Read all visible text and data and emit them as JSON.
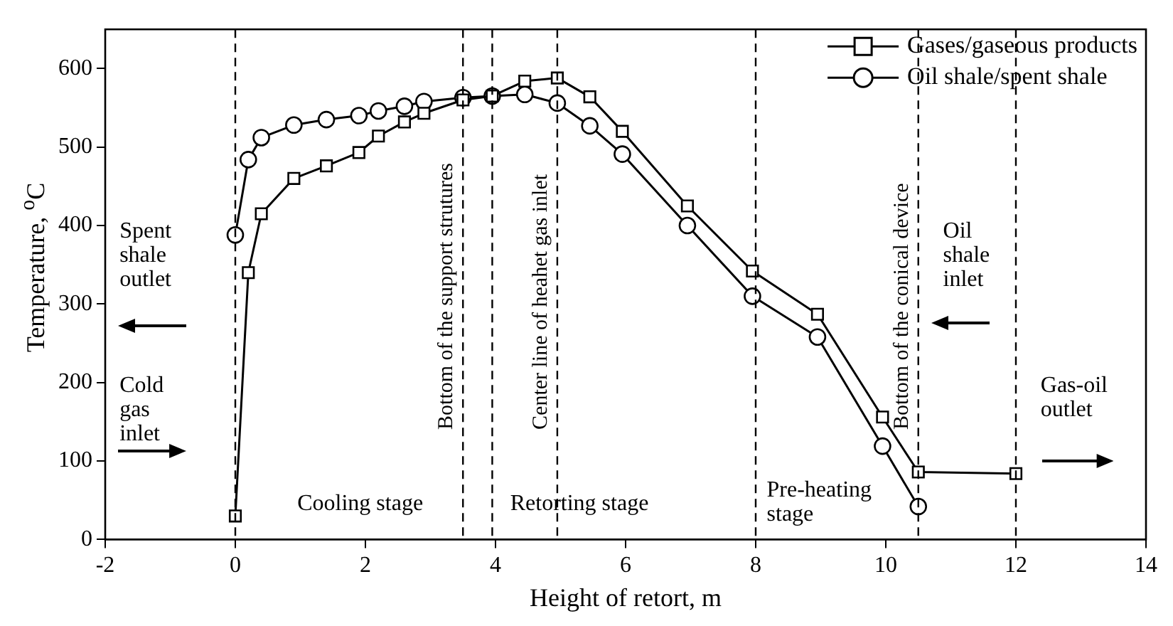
{
  "chart_data": {
    "type": "line",
    "xlabel": "Height of retort, m",
    "ylabel": "Temperature, $^{o}$C",
    "xlim": [
      -2,
      14
    ],
    "xticks": [
      -2,
      0,
      2,
      4,
      6,
      8,
      10,
      12,
      14
    ],
    "ylim": [
      0,
      650
    ],
    "yticks": [
      0,
      100,
      200,
      300,
      400,
      500,
      600
    ],
    "grid": false,
    "legend": "top right",
    "line_style": "solid",
    "series": [
      {
        "name": "Gases/gaseous products",
        "color": "#000000",
        "marker": "square",
        "x": [
          0,
          0.2,
          0.4,
          0.9,
          1.4,
          1.9,
          2.2,
          2.6,
          2.9,
          3.5,
          3.95,
          4.45,
          4.95,
          5.45,
          5.95,
          6.95,
          7.95,
          8.95,
          9.95,
          10.5,
          12
        ],
        "values": [
          30,
          340,
          415,
          460,
          476,
          493,
          514,
          532,
          543,
          560,
          565,
          584,
          588,
          564,
          520,
          425,
          342,
          287,
          156,
          86,
          84
        ]
      },
      {
        "name": "Oil shale/spent shale",
        "color": "#000000",
        "marker": "circle",
        "x": [
          0,
          0.2,
          0.4,
          0.9,
          1.4,
          1.9,
          2.2,
          2.6,
          2.9,
          3.5,
          3.95,
          4.45,
          4.95,
          5.45,
          5.95,
          6.95,
          7.95,
          8.95,
          9.95,
          10.5
        ],
        "values": [
          388,
          484,
          512,
          528,
          535,
          540,
          546,
          552,
          558,
          563,
          565,
          567,
          556,
          527,
          491,
          400,
          310,
          258,
          119,
          42
        ]
      }
    ],
    "ref_lines": [
      {
        "axis": "x",
        "value": 0,
        "line_style": "dashed"
      },
      {
        "axis": "x",
        "value": 3.5,
        "label": "Bottom of the support strutures",
        "line_style": "dashed"
      },
      {
        "axis": "x",
        "value": 3.95,
        "line_style": "dashed"
      },
      {
        "axis": "x",
        "value": 4.95,
        "label": "Center line of heahet gas inlet",
        "line_style": "dashed"
      },
      {
        "axis": "x",
        "value": 8,
        "line_style": "dashed"
      },
      {
        "axis": "x",
        "value": 10.5,
        "label": "Bottom of the conical device",
        "line_style": "dashed"
      },
      {
        "axis": "x",
        "value": 12,
        "line_style": "dashed"
      }
    ],
    "annotations": [
      "Spent shale outlet",
      "Cold gas inlet",
      "Cooling stage",
      "Retorting stage",
      "Pre-heating stage",
      "Oil shale inlet",
      "Gas-oil outlet"
    ]
  }
}
